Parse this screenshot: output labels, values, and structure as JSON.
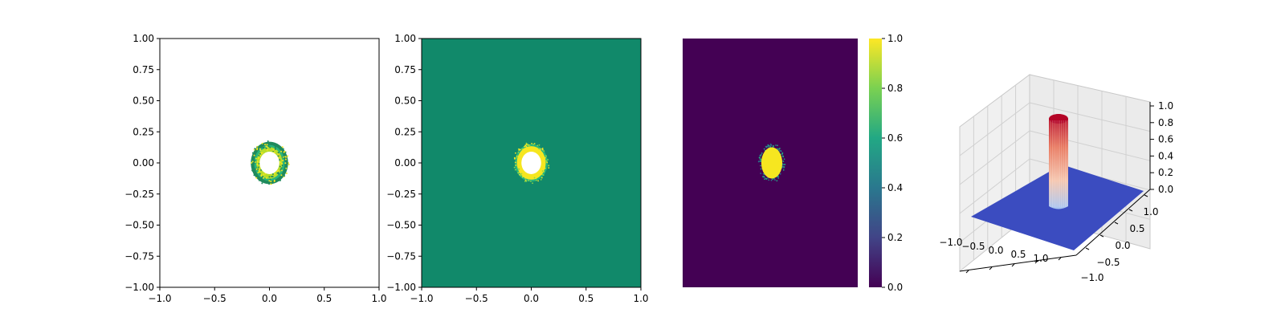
{
  "colors": {
    "panel2_background": "#11896a",
    "panel3_background": "#440154",
    "blob_yellow": "#f6e620",
    "blob_green": "#27b57c",
    "ring_dark_green": "#1f8a5c",
    "surface_base": "#3b4cc0",
    "surface_peak": "#b40426"
  },
  "chart_data": [
    {
      "type": "scatter",
      "panel": "panel-1",
      "xlim": [
        -1,
        1
      ],
      "ylim": [
        -1,
        1
      ],
      "xticks": [
        "−1.0",
        "−0.5",
        "0.0",
        "0.5",
        "1.0"
      ],
      "yticks": [
        "1.00",
        "0.75",
        "0.50",
        "0.25",
        "0.00",
        "−0.25",
        "−0.50",
        "−0.75",
        "−1.00"
      ],
      "ring_outer_radius": 0.17,
      "ring_inner_radius": 0.09,
      "center": [
        0,
        0
      ]
    },
    {
      "type": "heatmap",
      "panel": "panel-2",
      "xlim": [
        -1,
        1
      ],
      "ylim": [
        -1,
        1
      ],
      "xticks": [
        "−1.0",
        "−0.5",
        "0.0",
        "0.5",
        "1.0"
      ],
      "yticks": [
        "1.00",
        "0.75",
        "0.50",
        "0.25",
        "0.00",
        "−0.25",
        "−0.50",
        "−0.75",
        "−1.00"
      ],
      "blob_outer_radius": 0.15,
      "blob_inner_radius": 0.09,
      "center": [
        0,
        0
      ]
    },
    {
      "type": "heatmap",
      "panel": "panel-3",
      "colorbar": {
        "range": [
          0,
          1
        ],
        "ticks": [
          "1.0",
          "0.8",
          "0.6",
          "0.4",
          "0.2",
          "0.0"
        ],
        "colormap": [
          "#440154",
          "#414487",
          "#2a788e",
          "#22a884",
          "#7ad151",
          "#fde725"
        ]
      },
      "blob_radius": 0.12,
      "blob_value": 1.0,
      "background_value": 0.0,
      "center": [
        0,
        0
      ]
    },
    {
      "type": "area",
      "panel": "panel-4",
      "surface": "3d",
      "xlim": [
        -1,
        1
      ],
      "ylim": [
        -1,
        1
      ],
      "zlim": [
        0,
        1
      ],
      "xticks": [
        "−1.0",
        "−0.5",
        "0.0",
        "0.5",
        "1.0"
      ],
      "yticks": [
        "1.0",
        "0.5",
        "0.0",
        "−0.5",
        "−1.0"
      ],
      "zticks": [
        "1.0",
        "0.8",
        "0.6",
        "0.4",
        "0.2",
        "0.0"
      ],
      "peak_height": 1.0,
      "peak_radius": 0.12,
      "base_height": 0.0
    }
  ]
}
